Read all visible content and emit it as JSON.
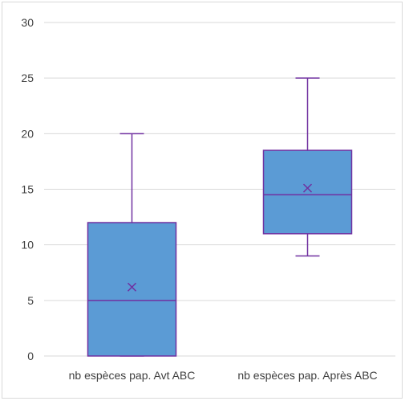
{
  "chart_data": {
    "type": "boxplot",
    "title": "",
    "xlabel": "",
    "ylabel": "",
    "ylim": [
      0,
      30
    ],
    "y_ticks": [
      0,
      5,
      10,
      15,
      20,
      25,
      30
    ],
    "grid": true,
    "categories": [
      "nb espèces pap. Avt ABC",
      "nb espèces pap. Après ABC"
    ],
    "boxes": [
      {
        "min": 0,
        "q1": 0,
        "median": 5,
        "q3": 12,
        "max": 20,
        "mean": 6.2
      },
      {
        "min": 9,
        "q1": 11,
        "median": 14.5,
        "q3": 18.5,
        "max": 25,
        "mean": 15.1
      }
    ],
    "colors": {
      "box_fill": "#5b9bd5",
      "box_stroke": "#7030a0",
      "grid": "#d9d9d9",
      "text": "#404040"
    }
  }
}
